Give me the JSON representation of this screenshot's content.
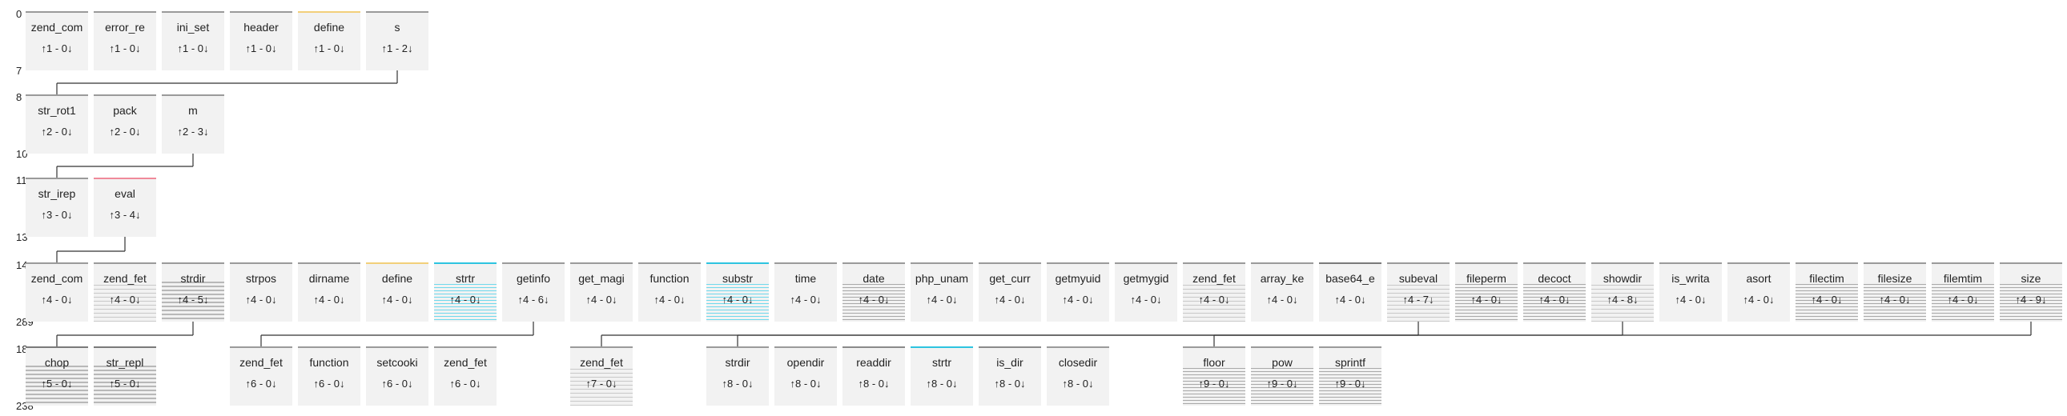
{
  "row_labels": [
    {
      "start": "0",
      "end": "7"
    },
    {
      "start": "8",
      "end": "10"
    },
    {
      "start": "11",
      "end": "13"
    },
    {
      "start": "14",
      "end": "289"
    },
    {
      "start": "18",
      "end": "238"
    }
  ],
  "rows": [
    [
      {
        "name": "zend_com",
        "counts": "↑1 - 0↓",
        "bar": "#9a9a9a"
      },
      {
        "name": "error_re",
        "counts": "↑1 - 0↓",
        "bar": "#9a9a9a"
      },
      {
        "name": "ini_set",
        "counts": "↑1 - 0↓",
        "bar": "#9a9a9a"
      },
      {
        "name": "header",
        "counts": "↑1 - 0↓",
        "bar": "#9a9a9a"
      },
      {
        "name": "define",
        "counts": "↑1 - 0↓",
        "bar": "#f2cf7a"
      },
      {
        "name": "s",
        "counts": "↑1 - 2↓",
        "bar": "#9a9a9a"
      }
    ],
    [
      {
        "name": "str_rot1",
        "counts": "↑2 - 0↓",
        "bar": "#9a9a9a"
      },
      {
        "name": "pack",
        "counts": "↑2 - 0↓",
        "bar": "#9a9a9a"
      },
      {
        "name": "m",
        "counts": "↑2 - 3↓",
        "bar": "#9a9a9a"
      }
    ],
    [
      {
        "name": "str_irep",
        "counts": "↑3 - 0↓",
        "bar": "#9a9a9a"
      },
      {
        "name": "eval",
        "counts": "↑3 - 4↓",
        "bar": "#f08a9a"
      }
    ],
    [
      {
        "name": "zend_com",
        "counts": "↑4 - 0↓",
        "bar": "#9a9a9a"
      },
      {
        "name": "zend_fet",
        "counts": "↑4 - 0↓",
        "bar": "#9a9a9a",
        "stripes": "light"
      },
      {
        "name": "strdir",
        "counts": "↑4 - 5↓",
        "bar": "#9a9a9a",
        "stripes": "thick"
      },
      {
        "name": "strpos",
        "counts": "↑4 - 0↓",
        "bar": "#9a9a9a"
      },
      {
        "name": "dirname",
        "counts": "↑4 - 0↓",
        "bar": "#9a9a9a"
      },
      {
        "name": "define",
        "counts": "↑4 - 0↓",
        "bar": "#f2cf7a"
      },
      {
        "name": "strtr",
        "counts": "↑4 - 0↓",
        "bar": "#2ec4e0",
        "stripes": "cyan"
      },
      {
        "name": "getinfo",
        "counts": "↑4 - 6↓",
        "bar": "#9a9a9a"
      },
      {
        "name": "get_magi",
        "counts": "↑4 - 0↓",
        "bar": "#9a9a9a"
      },
      {
        "name": "function",
        "counts": "↑4 - 0↓",
        "bar": "#9a9a9a"
      },
      {
        "name": "substr",
        "counts": "↑4 - 0↓",
        "bar": "#2ec4e0",
        "stripes": "cyan"
      },
      {
        "name": "time",
        "counts": "↑4 - 0↓",
        "bar": "#9a9a9a"
      },
      {
        "name": "date",
        "counts": "↑4 - 0↓",
        "bar": "#9a9a9a",
        "stripes": "gray"
      },
      {
        "name": "php_unam",
        "counts": "↑4 - 0↓",
        "bar": "#9a9a9a"
      },
      {
        "name": "get_curr",
        "counts": "↑4 - 0↓",
        "bar": "#9a9a9a"
      },
      {
        "name": "getmyuid",
        "counts": "↑4 - 0↓",
        "bar": "#9a9a9a"
      },
      {
        "name": "getmygid",
        "counts": "↑4 - 0↓",
        "bar": "#9a9a9a"
      },
      {
        "name": "zend_fet",
        "counts": "↑4 - 0↓",
        "bar": "#9a9a9a",
        "stripes": "light"
      },
      {
        "name": "array_ke",
        "counts": "↑4 - 0↓",
        "bar": "#9a9a9a"
      },
      {
        "name": "base64_e",
        "counts": "↑4 - 0↓",
        "bar": "#7a7a7a"
      },
      {
        "name": "subeval",
        "counts": "↑4 - 7↓",
        "bar": "#9a9a9a",
        "stripes": "light"
      },
      {
        "name": "fileperm",
        "counts": "↑4 - 0↓",
        "bar": "#9a9a9a",
        "stripes": "gray"
      },
      {
        "name": "decoct",
        "counts": "↑4 - 0↓",
        "bar": "#9a9a9a",
        "stripes": "gray"
      },
      {
        "name": "showdir",
        "counts": "↑4 - 8↓",
        "bar": "#9a9a9a",
        "stripes": "light"
      },
      {
        "name": "is_writa",
        "counts": "↑4 - 0↓",
        "bar": "#9a9a9a"
      },
      {
        "name": "asort",
        "counts": "↑4 - 0↓",
        "bar": "#9a9a9a"
      },
      {
        "name": "filectim",
        "counts": "↑4 - 0↓",
        "bar": "#9a9a9a",
        "stripes": "gray"
      },
      {
        "name": "filesize",
        "counts": "↑4 - 0↓",
        "bar": "#9a9a9a",
        "stripes": "gray"
      },
      {
        "name": "filemtim",
        "counts": "↑4 - 0↓",
        "bar": "#9a9a9a",
        "stripes": "gray"
      },
      {
        "name": "size",
        "counts": "↑4 - 9↓",
        "bar": "#9a9a9a",
        "stripes": "gray"
      }
    ],
    [
      {
        "name": "chop",
        "counts": "↑5 - 0↓",
        "bar": "#7a7a7a",
        "stripes": "thick",
        "col": 0
      },
      {
        "name": "str_repl",
        "counts": "↑5 - 0↓",
        "bar": "#7a7a7a",
        "stripes": "thick",
        "col": 1
      },
      {
        "name": "zend_fet",
        "counts": "↑6 - 0↓",
        "bar": "#9a9a9a",
        "col": 3
      },
      {
        "name": "function",
        "counts": "↑6 - 0↓",
        "bar": "#9a9a9a",
        "col": 4
      },
      {
        "name": "setcooki",
        "counts": "↑6 - 0↓",
        "bar": "#9a9a9a",
        "col": 5
      },
      {
        "name": "zend_fet",
        "counts": "↑6 - 0↓",
        "bar": "#9a9a9a",
        "col": 6
      },
      {
        "name": "zend_fet",
        "counts": "↑7 - 0↓",
        "bar": "#9a9a9a",
        "stripes": "light",
        "col": 8
      },
      {
        "name": "strdir",
        "counts": "↑8 - 0↓",
        "bar": "#9a9a9a",
        "col": 10
      },
      {
        "name": "opendir",
        "counts": "↑8 - 0↓",
        "bar": "#9a9a9a",
        "col": 11
      },
      {
        "name": "readdir",
        "counts": "↑8 - 0↓",
        "bar": "#8a8a8a",
        "col": 12
      },
      {
        "name": "strtr",
        "counts": "↑8 - 0↓",
        "bar": "#2ec4e0",
        "col": 13
      },
      {
        "name": "is_dir",
        "counts": "↑8 - 0↓",
        "bar": "#8a8a8a",
        "col": 14
      },
      {
        "name": "closedir",
        "counts": "↑8 - 0↓",
        "bar": "#9a9a9a",
        "col": 15
      },
      {
        "name": "floor",
        "counts": "↑9 - 0↓",
        "bar": "#9a9a9a",
        "stripes": "gray",
        "col": 17
      },
      {
        "name": "pow",
        "counts": "↑9 - 0↓",
        "bar": "#9a9a9a",
        "stripes": "gray",
        "col": 18
      },
      {
        "name": "sprintf",
        "counts": "↑9 - 0↓",
        "bar": "#9a9a9a",
        "stripes": "gray",
        "col": 19
      }
    ]
  ],
  "links": [
    {
      "from_row": 0,
      "from_col": 5,
      "to_row": 1,
      "to_cols": [
        0
      ]
    },
    {
      "from_row": 1,
      "from_col": 2,
      "to_row": 2,
      "to_cols": [
        0
      ]
    },
    {
      "from_row": 2,
      "from_col": 1,
      "to_row": 3,
      "to_cols": [
        0
      ]
    },
    {
      "from_row": 3,
      "from_col": 2,
      "to_row": 4,
      "to_cols": [
        0
      ]
    },
    {
      "from_row": 3,
      "from_col": 7,
      "to_row": 4,
      "to_cols": [
        3
      ]
    },
    {
      "from_row": 3,
      "from_col": 20,
      "to_row": 4,
      "to_cols": [
        8
      ]
    },
    {
      "from_row": 3,
      "from_col": 23,
      "to_row": 4,
      "to_cols": [
        10
      ]
    },
    {
      "from_row": 3,
      "from_col": 29,
      "to_row": 4,
      "to_cols": [
        17
      ]
    }
  ]
}
